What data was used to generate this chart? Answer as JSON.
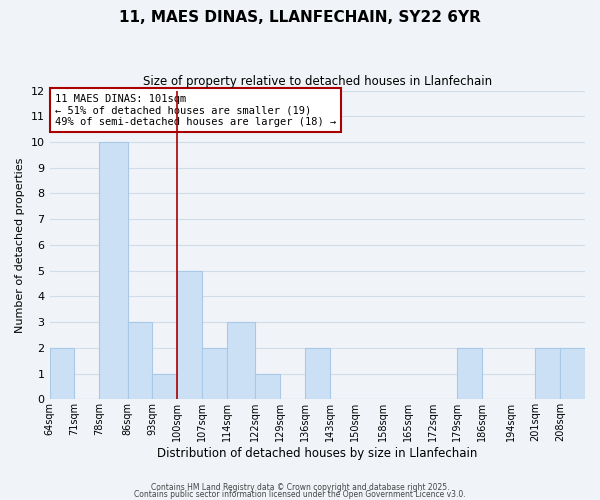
{
  "title_line1": "11, MAES DINAS, LLANFECHAIN, SY22 6YR",
  "title_line2": "Size of property relative to detached houses in Llanfechain",
  "xlabel": "Distribution of detached houses by size in Llanfechain",
  "ylabel": "Number of detached properties",
  "bins": [
    64,
    71,
    78,
    86,
    93,
    100,
    107,
    114,
    122,
    129,
    136,
    143,
    150,
    158,
    165,
    172,
    179,
    186,
    194,
    201,
    208
  ],
  "bin_widths": [
    7,
    7,
    8,
    7,
    7,
    7,
    7,
    8,
    7,
    7,
    7,
    7,
    8,
    7,
    7,
    7,
    7,
    8,
    7,
    7,
    7
  ],
  "counts": [
    2,
    0,
    10,
    3,
    1,
    5,
    2,
    3,
    1,
    0,
    2,
    0,
    0,
    0,
    0,
    0,
    2,
    0,
    0,
    2,
    2
  ],
  "bar_color": "#cce0f5",
  "bar_edge_color": "#a8c8e8",
  "grid_color": "#d0dce8",
  "vline_x": 100,
  "vline_color": "#aa0000",
  "annotation_title": "11 MAES DINAS: 101sqm",
  "annotation_line1": "← 51% of detached houses are smaller (19)",
  "annotation_line2": "49% of semi-detached houses are larger (18) →",
  "annotation_box_color": "#ffffff",
  "annotation_box_edge": "#aa0000",
  "ylim": [
    0,
    12
  ],
  "yticks": [
    0,
    1,
    2,
    3,
    4,
    5,
    6,
    7,
    8,
    9,
    10,
    11,
    12
  ],
  "bg_color": "#f0f4f8",
  "footer_line1": "Contains HM Land Registry data © Crown copyright and database right 2025.",
  "footer_line2": "Contains public sector information licensed under the Open Government Licence v3.0."
}
